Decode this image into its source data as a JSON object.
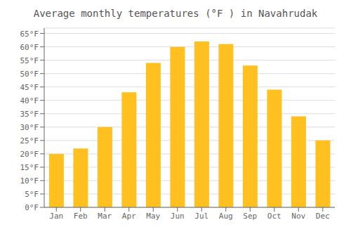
{
  "chart_data": {
    "type": "bar",
    "title": "Average monthly temperatures (°F ) in Navahrudak",
    "categories": [
      "Jan",
      "Feb",
      "Mar",
      "Apr",
      "May",
      "Jun",
      "Jul",
      "Aug",
      "Sep",
      "Oct",
      "Nov",
      "Dec"
    ],
    "values": [
      20,
      22,
      30,
      43,
      54,
      60,
      62,
      61,
      53,
      44,
      34,
      25
    ],
    "color": "#FFC020",
    "ylim": [
      0,
      67
    ],
    "yticks": [
      {
        "value": 0,
        "label": "0°F"
      },
      {
        "value": 5,
        "label": "5°F"
      },
      {
        "value": 10,
        "label": "10°F"
      },
      {
        "value": 15,
        "label": "15°F"
      },
      {
        "value": 20,
        "label": "20°F"
      },
      {
        "value": 25,
        "label": "25°F"
      },
      {
        "value": 30,
        "label": "30°F"
      },
      {
        "value": 35,
        "label": "35°F"
      },
      {
        "value": 40,
        "label": "40°F"
      },
      {
        "value": 45,
        "label": "45°F"
      },
      {
        "value": 50,
        "label": "50°F"
      },
      {
        "value": 55,
        "label": "55°F"
      },
      {
        "value": 60,
        "label": "60°F"
      },
      {
        "value": 65,
        "label": "65°F"
      }
    ],
    "grid": true
  }
}
